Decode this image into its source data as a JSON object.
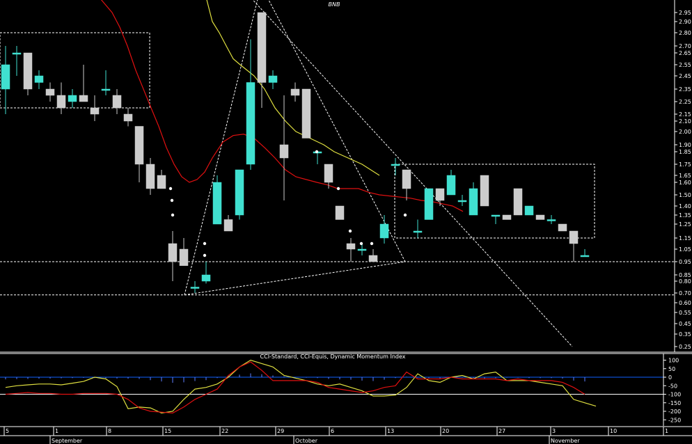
{
  "chart_data": [
    {
      "type": "candlestick",
      "title": "BNB",
      "colors": {
        "up": "#40e0d0",
        "down": "#cccccc",
        "ma_fast": "#e01010",
        "ma_slow": "#e0e040",
        "background": "#000000",
        "annotation": "#ffffff"
      },
      "y_ticks": [
        "2.95",
        "2.90",
        "2.80",
        "2.70",
        "2.65",
        "2.55",
        "2.45",
        "2.35",
        "2.25",
        "2.15",
        "2.10",
        "2.00",
        "1.90",
        "1.85",
        "1.75",
        "1.65",
        "1.60",
        "1.50",
        "1.40",
        "1.35",
        "1.25",
        "1.15",
        "1.05",
        "0.95",
        "0.85",
        "0.80",
        "0.70",
        "0.60",
        "0.55",
        "0.45",
        "0.35",
        "0.25"
      ],
      "x_ticks": [
        "5",
        "1",
        "8",
        "15",
        "22",
        "29",
        "6",
        "13",
        "20",
        "27",
        "3",
        "10",
        "1"
      ],
      "month_labels": [
        "September",
        "October",
        "November"
      ],
      "candles": [
        {
          "open": 2.35,
          "high": 2.7,
          "low": 2.15,
          "close": 2.55
        },
        {
          "open": 2.65,
          "high": 2.7,
          "low": 2.45,
          "close": 2.65
        },
        {
          "open": 2.65,
          "high": 2.65,
          "low": 2.3,
          "close": 2.35
        },
        {
          "open": 2.4,
          "high": 2.5,
          "low": 2.35,
          "close": 2.45
        },
        {
          "open": 2.35,
          "high": 2.4,
          "low": 2.25,
          "close": 2.3
        },
        {
          "open": 2.3,
          "high": 2.4,
          "low": 2.15,
          "close": 2.2
        },
        {
          "open": 2.25,
          "high": 2.35,
          "low": 2.2,
          "close": 2.3
        },
        {
          "open": 2.3,
          "high": 2.55,
          "low": 2.25,
          "close": 2.25
        },
        {
          "open": 2.2,
          "high": 2.3,
          "low": 2.1,
          "close": 2.15
        },
        {
          "open": 2.35,
          "high": 2.5,
          "low": 2.3,
          "close": 2.35
        },
        {
          "open": 2.3,
          "high": 2.35,
          "low": 2.15,
          "close": 2.2
        },
        {
          "open": 2.15,
          "high": 2.2,
          "low": 2.05,
          "close": 2.1
        },
        {
          "open": 2.05,
          "high": 2.05,
          "low": 1.6,
          "close": 1.75
        },
        {
          "open": 1.75,
          "high": 1.8,
          "low": 1.5,
          "close": 1.55
        },
        {
          "open": 1.65,
          "high": 1.7,
          "low": 1.55,
          "close": 1.55
        },
        {
          "open": 1.1,
          "high": 1.2,
          "low": 0.8,
          "close": 0.95
        },
        {
          "open": 1.05,
          "high": 1.15,
          "low": 0.92,
          "close": 0.92
        },
        {
          "open": 0.75,
          "high": 0.8,
          "low": 0.7,
          "close": 0.75
        },
        {
          "open": 0.8,
          "high": 0.95,
          "low": 0.78,
          "close": 0.85
        },
        {
          "open": 1.25,
          "high": 1.65,
          "low": 1.25,
          "close": 1.6
        },
        {
          "open": 1.3,
          "high": 1.35,
          "low": 1.2,
          "close": 1.2
        },
        {
          "open": 1.35,
          "high": 1.7,
          "low": 1.3,
          "close": 1.7
        },
        {
          "open": 1.75,
          "high": 2.75,
          "low": 1.7,
          "close": 2.4
        },
        {
          "open": 2.95,
          "high": 2.95,
          "low": 2.2,
          "close": 2.4
        },
        {
          "open": 2.4,
          "high": 2.5,
          "low": 2.35,
          "close": 2.45
        },
        {
          "open": 1.9,
          "high": 2.3,
          "low": 1.45,
          "close": 1.8
        },
        {
          "open": 2.35,
          "high": 2.4,
          "low": 2.25,
          "close": 2.3
        },
        {
          "open": 2.35,
          "high": 2.35,
          "low": 1.95,
          "close": 1.95
        },
        {
          "open": 1.85,
          "high": 1.85,
          "low": 1.75,
          "close": 1.85
        },
        {
          "open": 1.75,
          "high": 1.75,
          "low": 1.55,
          "close": 1.6
        },
        {
          "open": 1.4,
          "high": 1.4,
          "low": 1.3,
          "close": 1.3
        },
        {
          "open": 1.1,
          "high": 1.15,
          "low": 0.95,
          "close": 1.05
        },
        {
          "open": 1.05,
          "high": 1.1,
          "low": 1.0,
          "close": 1.05
        },
        {
          "open": 1.0,
          "high": 1.05,
          "low": 0.95,
          "close": 0.95
        },
        {
          "open": 1.15,
          "high": 1.35,
          "low": 1.1,
          "close": 1.25
        },
        {
          "open": 1.75,
          "high": 1.8,
          "low": 1.65,
          "close": 1.75
        },
        {
          "open": 1.7,
          "high": 1.7,
          "low": 1.45,
          "close": 1.55
        },
        {
          "open": 1.2,
          "high": 1.3,
          "low": 1.15,
          "close": 1.2
        },
        {
          "open": 1.3,
          "high": 1.55,
          "low": 1.3,
          "close": 1.55
        },
        {
          "open": 1.55,
          "high": 1.55,
          "low": 1.4,
          "close": 1.45
        },
        {
          "open": 1.5,
          "high": 1.7,
          "low": 1.5,
          "close": 1.65
        },
        {
          "open": 1.45,
          "high": 1.5,
          "low": 1.4,
          "close": 1.45
        },
        {
          "open": 1.35,
          "high": 1.6,
          "low": 1.35,
          "close": 1.55
        },
        {
          "open": 1.65,
          "high": 1.65,
          "low": 1.4,
          "close": 1.4
        },
        {
          "open": 1.35,
          "high": 1.35,
          "low": 1.25,
          "close": 1.35
        },
        {
          "open": 1.35,
          "high": 1.35,
          "low": 1.3,
          "close": 1.3
        },
        {
          "open": 1.55,
          "high": 1.55,
          "low": 1.35,
          "close": 1.35
        },
        {
          "open": 1.35,
          "high": 1.4,
          "low": 1.35,
          "close": 1.4
        },
        {
          "open": 1.35,
          "high": 1.35,
          "low": 1.3,
          "close": 1.3
        },
        {
          "open": 1.3,
          "high": 1.35,
          "low": 1.25,
          "close": 1.3
        },
        {
          "open": 1.25,
          "high": 1.25,
          "low": 1.2,
          "close": 1.2
        },
        {
          "open": 1.2,
          "high": 1.2,
          "low": 0.95,
          "close": 1.1
        },
        {
          "open": 1.0,
          "high": 1.05,
          "low": 1.0,
          "close": 1.0
        }
      ],
      "ma_fast": [
        3.05,
        3.0,
        2.95,
        2.85,
        2.7,
        2.5,
        2.35,
        2.2,
        2.05,
        1.88,
        1.75,
        1.64,
        1.6,
        1.62,
        1.68,
        1.8,
        1.92,
        1.97,
        1.98,
        1.95,
        1.88,
        1.8,
        1.7,
        1.64,
        1.62,
        1.6,
        1.58,
        1.55,
        1.55,
        1.55,
        1.52,
        1.5,
        1.49,
        1.48,
        1.47,
        1.45,
        1.44,
        1.42,
        1.4,
        1.37
      ],
      "ma_fast_x": [
        139,
        150,
        161,
        172,
        183,
        195,
        206,
        217,
        228,
        239,
        250,
        261,
        272,
        283,
        294,
        305,
        320,
        335,
        350,
        365,
        380,
        395,
        410,
        425,
        440,
        455,
        470,
        485,
        500,
        515,
        530,
        545,
        560,
        575,
        590,
        605,
        620,
        635,
        650,
        665
      ],
      "ma_slow": [
        3.2,
        3.15,
        3.05,
        2.9,
        2.8,
        2.7,
        2.6,
        2.55,
        2.5,
        2.45,
        2.35,
        2.2,
        2.1,
        2.0,
        1.95,
        1.9,
        1.85,
        1.8,
        1.75,
        1.65
      ],
      "ma_slow_x": [
        275,
        285,
        295,
        305,
        315,
        325,
        335,
        345,
        355,
        365,
        380,
        395,
        410,
        425,
        445,
        465,
        480,
        500,
        520,
        545
      ],
      "dots": [
        {
          "x": 248,
          "y": 1.35
        },
        {
          "x": 247,
          "y": 1.45
        },
        {
          "x": 245,
          "y": 1.55
        },
        {
          "x": 294,
          "y": 1.1
        },
        {
          "x": 294,
          "y": 1.0
        },
        {
          "x": 455,
          "y": 1.85
        },
        {
          "x": 486,
          "y": 1.55
        },
        {
          "x": 503,
          "y": 1.2
        },
        {
          "x": 519,
          "y": 1.1
        },
        {
          "x": 534,
          "y": 1.1
        },
        {
          "x": 582,
          "y": 1.35
        }
      ],
      "boxes": [
        {
          "x0": 0,
          "x1": 215,
          "y0": 2.8,
          "y1": 2.2
        },
        {
          "x0": 567,
          "x1": 854,
          "y0": 1.75,
          "y1": 1.15
        }
      ],
      "hlines": [
        0.95,
        0.68
      ],
      "trendlines": [
        {
          "x0": 265,
          "y0": 0.68,
          "x1": 375,
          "y1": 3.1
        },
        {
          "x0": 375,
          "y0": 3.1,
          "x1": 582,
          "y1": 0.95
        },
        {
          "x0": 265,
          "y0": 0.68,
          "x1": 582,
          "y1": 0.95
        },
        {
          "x0": 344,
          "y0": 3.1,
          "x1": 822,
          "y1": 0.25
        }
      ]
    },
    {
      "type": "line",
      "title": "CCI-Standard, CCI-Equis, Dynamic Momentum Index",
      "y_ticks": [
        "100",
        "50",
        "0",
        "-50",
        "-100",
        "-150",
        "-200",
        "-250"
      ],
      "reference_lines": [
        {
          "value": 0,
          "color": "#1060ff"
        },
        {
          "value": -100,
          "color": "#ffffff"
        }
      ],
      "cci_histogram": [
        -50,
        -45,
        -40,
        -35,
        -30,
        -25,
        -20,
        -15,
        -20,
        -25,
        -30,
        -35,
        -40,
        -70,
        -100,
        -130,
        -120,
        -90,
        -70,
        -20,
        30,
        60,
        90,
        70,
        40,
        20,
        0,
        -10,
        -20,
        -40,
        -50,
        -60,
        -80,
        -90,
        -60,
        -20,
        10,
        -10,
        -20,
        -30,
        0,
        -10,
        -20,
        -30,
        -20,
        -10,
        -10,
        -20,
        -20,
        -20,
        -30,
        -80,
        -100
      ],
      "series": [
        {
          "values": [
            -60,
            -50,
            -45,
            -40,
            -40,
            -45,
            -35,
            -25,
            0,
            -10,
            -55,
            -185,
            -175,
            -180,
            -210,
            -200,
            -130,
            -70,
            -60,
            -40,
            0,
            60,
            100,
            80,
            60,
            10,
            -5,
            -20,
            -40,
            -50,
            -40,
            -60,
            -80,
            -110,
            -110,
            -105,
            -60,
            20,
            -20,
            -30,
            0,
            10,
            -10,
            20,
            30,
            -20,
            -20,
            -20,
            -30,
            -40,
            -50,
            -130,
            -150,
            -170
          ]
        },
        {
          "values": [
            -100,
            -95,
            -90,
            -95,
            -95,
            -100,
            -100,
            -95,
            -95,
            -95,
            -100,
            -130,
            -180,
            -200,
            -205,
            -210,
            -175,
            -130,
            -100,
            -70,
            10,
            60,
            90,
            40,
            -20,
            -20,
            -20,
            -20,
            -30,
            -60,
            -70,
            -80,
            -90,
            -80,
            -60,
            -50,
            30,
            -10,
            -10,
            -10,
            0,
            -10,
            -10,
            -10,
            -10,
            -20,
            -10,
            -20,
            -20,
            -20,
            -30,
            -60,
            -100
          ]
        }
      ]
    }
  ]
}
